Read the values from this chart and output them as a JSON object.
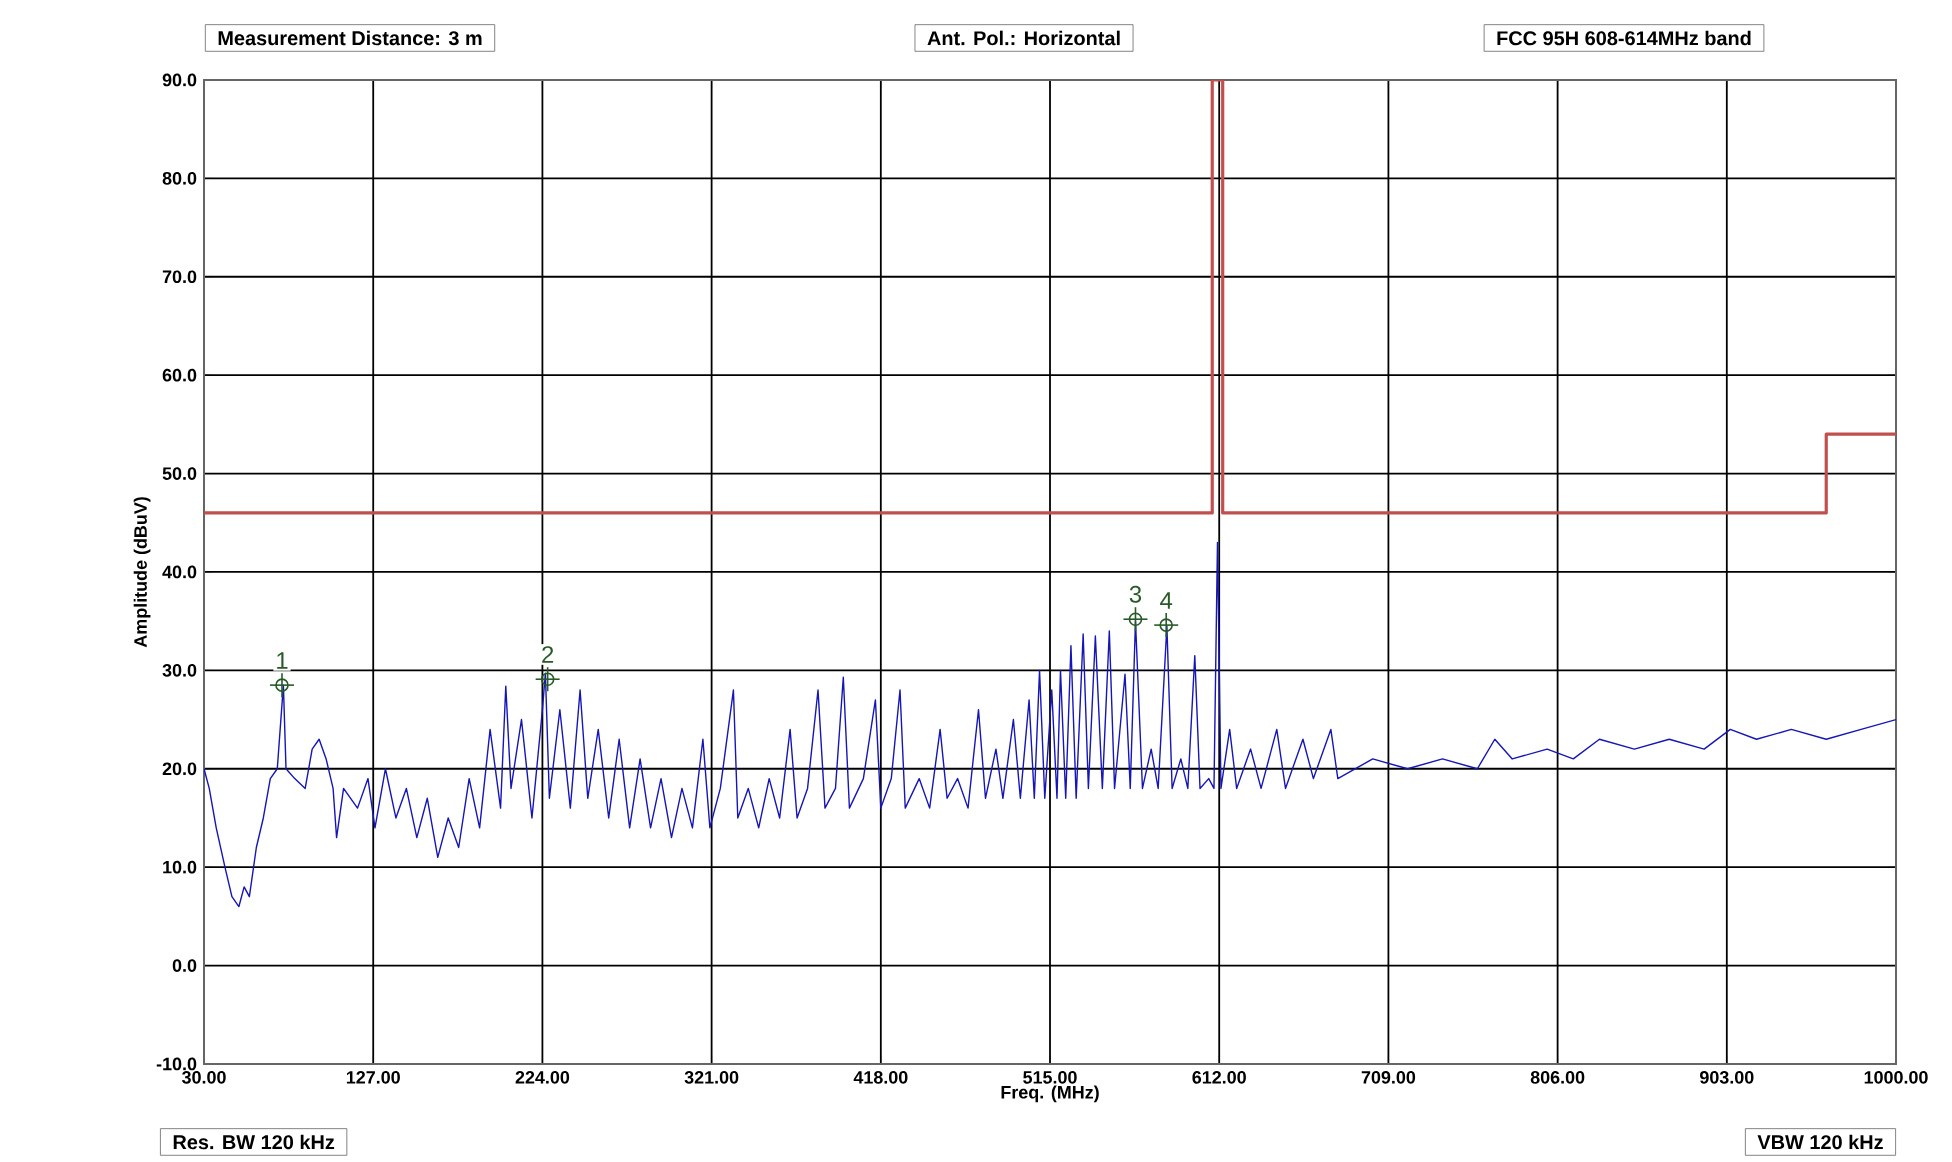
{
  "chart_data": {
    "type": "line",
    "xlabel": "Freq. (MHz)",
    "ylabel": "Amplitude (dBuV)",
    "xlim": [
      30,
      1000
    ],
    "ylim": [
      -10,
      90
    ],
    "xticks": [
      {
        "value": 30,
        "label": "30.00"
      },
      {
        "value": 127,
        "label": "127.00"
      },
      {
        "value": 224,
        "label": "224.00"
      },
      {
        "value": 321,
        "label": "321.00"
      },
      {
        "value": 418,
        "label": "418.00"
      },
      {
        "value": 515,
        "label": "515.00"
      },
      {
        "value": 612,
        "label": "612.00"
      },
      {
        "value": 709,
        "label": "709.00"
      },
      {
        "value": 806,
        "label": "806.00"
      },
      {
        "value": 903,
        "label": "903.00"
      },
      {
        "value": 1000,
        "label": "1000.00"
      }
    ],
    "yticks": [
      {
        "value": -10,
        "label": "-10.0"
      },
      {
        "value": 0,
        "label": "0.0"
      },
      {
        "value": 10,
        "label": "10.0"
      },
      {
        "value": 20,
        "label": "20.0"
      },
      {
        "value": 30,
        "label": "30.0"
      },
      {
        "value": 40,
        "label": "40.0"
      },
      {
        "value": 50,
        "label": "50.0"
      },
      {
        "value": 60,
        "label": "60.0"
      },
      {
        "value": 70,
        "label": "70.0"
      },
      {
        "value": 80,
        "label": "80.0"
      },
      {
        "value": 90,
        "label": "90.0"
      }
    ],
    "grid": true,
    "marker": "none",
    "line_style": "solid",
    "series": [
      {
        "type": "step",
        "color": "#c0504d",
        "x": [
          30,
          608,
          614,
          960,
          1000
        ],
        "values": [
          46,
          90,
          46,
          54,
          54
        ]
      },
      {
        "color": "#1515b8",
        "x": [
          30,
          33,
          37,
          42,
          46,
          50,
          53,
          56,
          60,
          64,
          68,
          72,
          75.5,
          77,
          82,
          88,
          92,
          96,
          100,
          104,
          106,
          110,
          118,
          124,
          128,
          134,
          140,
          146,
          152,
          158,
          164,
          170,
          176,
          182,
          188,
          194,
          200,
          203,
          206,
          212,
          218,
          224,
          225.7,
          228,
          234,
          240,
          245.6,
          250,
          256,
          262,
          268,
          274,
          280,
          286,
          292,
          298,
          304,
          310,
          316,
          320,
          326,
          333.5,
          336,
          342,
          348,
          354,
          360,
          366,
          370,
          376,
          382,
          386,
          392,
          396.5,
          400,
          408,
          414.9,
          418,
          424,
          429,
          432,
          440,
          446,
          452,
          456,
          462,
          468,
          474,
          478,
          484,
          488,
          494,
          498,
          503,
          506,
          509,
          512,
          516,
          519,
          521,
          524,
          527,
          530,
          534,
          537,
          541,
          545,
          549,
          552,
          558,
          561,
          564,
          568,
          573,
          577,
          582,
          585,
          590,
          594,
          598,
          601,
          606,
          609,
          611,
          613,
          618,
          622,
          630,
          636,
          645,
          650,
          660,
          666,
          676,
          680,
          700,
          720,
          740,
          760,
          770,
          780,
          800,
          815,
          830,
          850,
          870,
          890,
          905,
          920,
          940,
          960,
          980,
          1000
        ],
        "values": [
          20,
          18,
          14,
          10,
          7,
          6,
          8,
          7,
          12,
          15,
          19,
          20,
          28.5,
          20,
          19,
          18,
          22,
          23,
          21,
          18,
          13,
          18,
          16,
          19,
          14,
          20,
          15,
          18,
          13,
          17,
          11,
          15,
          12,
          19,
          14,
          24,
          16,
          28.4,
          18,
          25,
          15,
          26,
          29.7,
          17,
          26,
          16,
          28,
          17,
          24,
          15,
          23,
          14,
          21,
          14,
          19,
          13,
          18,
          14,
          23,
          14,
          18,
          28,
          15,
          18,
          14,
          19,
          15,
          24,
          15,
          18,
          28,
          16,
          18,
          29.3,
          16,
          19,
          27,
          16,
          19,
          28,
          16,
          19,
          16,
          24,
          17,
          19,
          16,
          26,
          17,
          22,
          17,
          25,
          17,
          27,
          17,
          30,
          17,
          28,
          17,
          30,
          17,
          32.5,
          17,
          33.7,
          18,
          33.5,
          18,
          34,
          18,
          29.6,
          18,
          35,
          18,
          22,
          18,
          34.5,
          18,
          21,
          18,
          31.5,
          18,
          19,
          18,
          43,
          18,
          24,
          18,
          22,
          18,
          24,
          18,
          23,
          19,
          24,
          19,
          21,
          20,
          21,
          20,
          23,
          21,
          22,
          21,
          23,
          22,
          23,
          22,
          24,
          23,
          24,
          23,
          24,
          25
        ]
      }
    ],
    "annotations": [
      "Measurement Distance: 3 m",
      "Ant. Pol.: Horizontal",
      "FCC 95H 608-614MHz band",
      "Res. BW 120 kHz",
      "VBW 120 kHz",
      {
        "text": "1",
        "x": 74.7,
        "y": 28.5
      },
      {
        "text": "2",
        "x": 227,
        "y": 29.1
      },
      {
        "text": "3",
        "x": 564,
        "y": 35.2
      },
      {
        "text": "4",
        "x": 581.6,
        "y": 34.6
      }
    ]
  }
}
